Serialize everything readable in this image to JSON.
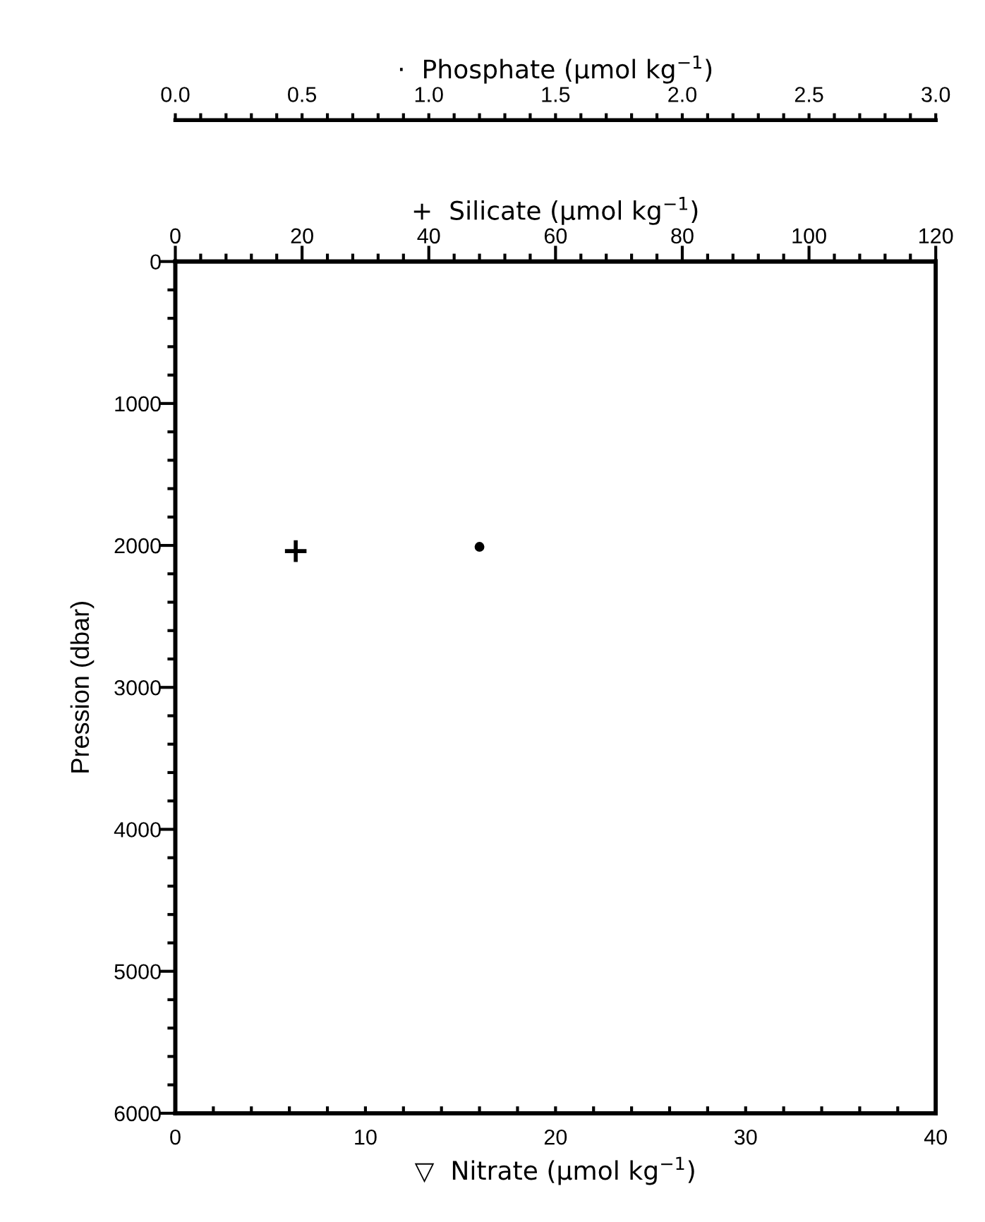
{
  "chart_data": [
    {
      "type": "scatter",
      "xlabel": "▽  Nitrate (µmol kg$^{−1}$)",
      "x2label": "+  Silicate (µmol kg$^{−1}$)",
      "ylabel": "Pression (dbar)",
      "xlim": [
        0,
        40
      ],
      "xticks": [
        0,
        {
          "value": 2,
          "label": null
        },
        {
          "value": 4,
          "label": null
        },
        {
          "value": 6,
          "label": null
        },
        {
          "value": 8,
          "label": null
        },
        10,
        {
          "value": 12,
          "label": null
        },
        {
          "value": 14,
          "label": null
        },
        {
          "value": 16,
          "label": null
        },
        {
          "value": 18,
          "label": null
        },
        20,
        {
          "value": 22,
          "label": null
        },
        {
          "value": 24,
          "label": null
        },
        {
          "value": 26,
          "label": null
        },
        {
          "value": 28,
          "label": null
        },
        30,
        {
          "value": 32,
          "label": null
        },
        {
          "value": 34,
          "label": null
        },
        {
          "value": 36,
          "label": null
        },
        {
          "value": 38,
          "label": null
        },
        40
      ],
      "x2lim": [
        0,
        120
      ],
      "x2ticks": [
        0,
        {
          "value": 4,
          "label": null
        },
        {
          "value": 8,
          "label": null
        },
        {
          "value": 12,
          "label": null
        },
        {
          "value": 16,
          "label": null
        },
        20,
        {
          "value": 24,
          "label": null
        },
        {
          "value": 28,
          "label": null
        },
        {
          "value": 32,
          "label": null
        },
        {
          "value": 36,
          "label": null
        },
        40,
        {
          "value": 44,
          "label": null
        },
        {
          "value": 48,
          "label": null
        },
        {
          "value": 52,
          "label": null
        },
        {
          "value": 56,
          "label": null
        },
        60,
        {
          "value": 64,
          "label": null
        },
        {
          "value": 68,
          "label": null
        },
        {
          "value": 72,
          "label": null
        },
        {
          "value": 76,
          "label": null
        },
        80,
        {
          "value": 84,
          "label": null
        },
        {
          "value": 88,
          "label": null
        },
        {
          "value": 92,
          "label": null
        },
        {
          "value": 96,
          "label": null
        },
        100,
        {
          "value": 104,
          "label": null
        },
        {
          "value": 108,
          "label": null
        },
        {
          "value": 112,
          "label": null
        },
        {
          "value": 116,
          "label": null
        },
        120
      ],
      "ylim": [
        6000,
        0
      ],
      "yticks": [
        0,
        {
          "value": 200,
          "label": null
        },
        {
          "value": 400,
          "label": null
        },
        {
          "value": 600,
          "label": null
        },
        {
          "value": 800,
          "label": null
        },
        1000,
        {
          "value": 1200,
          "label": null
        },
        {
          "value": 1400,
          "label": null
        },
        {
          "value": 1600,
          "label": null
        },
        {
          "value": 1800,
          "label": null
        },
        2000,
        {
          "value": 2200,
          "label": null
        },
        {
          "value": 2400,
          "label": null
        },
        {
          "value": 2600,
          "label": null
        },
        {
          "value": 2800,
          "label": null
        },
        3000,
        {
          "value": 3200,
          "label": null
        },
        {
          "value": 3400,
          "label": null
        },
        {
          "value": 3600,
          "label": null
        },
        {
          "value": 3800,
          "label": null
        },
        4000,
        {
          "value": 4200,
          "label": null
        },
        {
          "value": 4400,
          "label": null
        },
        {
          "value": 4600,
          "label": null
        },
        {
          "value": 4800,
          "label": null
        },
        5000,
        {
          "value": 5200,
          "label": null
        },
        {
          "value": 5400,
          "label": null
        },
        {
          "value": 5600,
          "label": null
        },
        {
          "value": 5800,
          "label": null
        },
        6000
      ],
      "series": [
        {
          "axis": "x2",
          "marker": "cross",
          "color": "#000000",
          "x": [
            19
          ],
          "values": [
            2040
          ]
        }
      ]
    },
    {
      "type": "scatter",
      "xlabel": "·  Phosphate (µmol kg$^{−1}$)",
      "tick_labels": "x",
      "xlim": [
        0,
        3
      ],
      "xticks": [
        {
          "value": 0,
          "label": "0.0"
        },
        {
          "value": 0.1,
          "label": null
        },
        {
          "value": 0.2,
          "label": null
        },
        {
          "value": 0.3,
          "label": null
        },
        {
          "value": 0.4,
          "label": null
        },
        {
          "value": 0.5,
          "label": "0.5"
        },
        {
          "value": 0.6,
          "label": null
        },
        {
          "value": 0.7,
          "label": null
        },
        {
          "value": 0.8,
          "label": null
        },
        {
          "value": 0.9,
          "label": null
        },
        {
          "value": 1,
          "label": "1.0"
        },
        {
          "value": 1.1,
          "label": null
        },
        {
          "value": 1.2,
          "label": null
        },
        {
          "value": 1.3,
          "label": null
        },
        {
          "value": 1.4,
          "label": null
        },
        {
          "value": 1.5,
          "label": "1.5"
        },
        {
          "value": 1.6,
          "label": null
        },
        {
          "value": 1.7,
          "label": null
        },
        {
          "value": 1.8,
          "label": null
        },
        {
          "value": 1.9,
          "label": null
        },
        {
          "value": 2,
          "label": "2.0"
        },
        {
          "value": 2.1,
          "label": null
        },
        {
          "value": 2.2,
          "label": null
        },
        {
          "value": 2.3,
          "label": null
        },
        {
          "value": 2.4,
          "label": null
        },
        {
          "value": 2.5,
          "label": "2.5"
        },
        {
          "value": 2.6,
          "label": null
        },
        {
          "value": 2.7,
          "label": null
        },
        {
          "value": 2.8,
          "label": null
        },
        {
          "value": 2.9,
          "label": null
        },
        {
          "value": 3,
          "label": "3.0"
        }
      ],
      "ylim": [
        6000,
        0
      ],
      "series": [
        {
          "marker": "circle",
          "color": "#000000",
          "x": [
            1.2
          ],
          "values": [
            2010
          ]
        }
      ]
    }
  ]
}
